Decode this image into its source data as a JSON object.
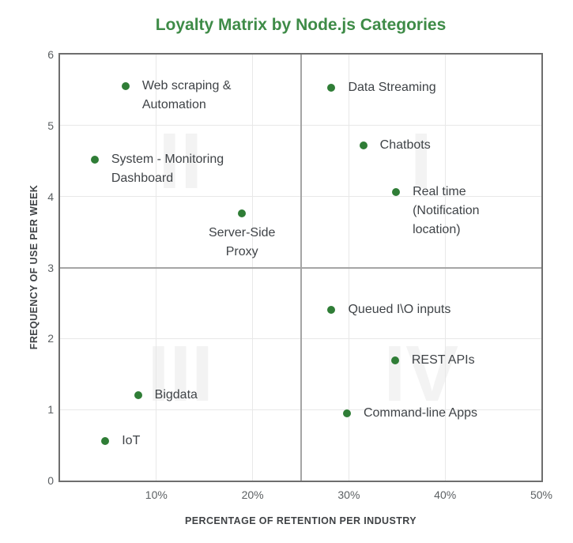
{
  "title": "Loyalty Matrix by Node.js Categories",
  "colors": {
    "background": "#ffffff",
    "title": "#3e8b47",
    "dot": "#2f7d36",
    "label": "#3f4347",
    "tick": "#5c6063",
    "axis_title": "#3f4245",
    "grid": "#e8e8e8",
    "quadrant_line": "#a5a5a5",
    "border": "#6e6e6e",
    "watermark": "#f3f3f3"
  },
  "chart_data": {
    "type": "scatter",
    "title": "Loyalty Matrix by Node.js Categories",
    "xlabel": "PERCENTAGE OF RETENTION PER INDUSTRY",
    "ylabel": "FREQUENCY OF USE PER WEEK",
    "xlim": [
      0,
      50
    ],
    "ylim": [
      0,
      6
    ],
    "x_unit": "%",
    "grid": true,
    "x_ticks": [
      {
        "value": 10,
        "label": "10%"
      },
      {
        "value": 20,
        "label": "20%"
      },
      {
        "value": 30,
        "label": "30%"
      },
      {
        "value": 40,
        "label": "40%"
      },
      {
        "value": 50,
        "label": "50%"
      }
    ],
    "y_ticks": [
      {
        "value": 0,
        "label": "0"
      },
      {
        "value": 1,
        "label": "1"
      },
      {
        "value": 2,
        "label": "2"
      },
      {
        "value": 3,
        "label": "3"
      },
      {
        "value": 4,
        "label": "4"
      },
      {
        "value": 5,
        "label": "5"
      },
      {
        "value": 6,
        "label": "6"
      }
    ],
    "quadrant_divider": {
      "x": 25,
      "y": 3
    },
    "quadrant_labels": [
      {
        "text": "I",
        "x": 37.5,
        "y": 4.5
      },
      {
        "text": "II",
        "x": 12.5,
        "y": 4.5
      },
      {
        "text": "III",
        "x": 12.5,
        "y": 1.5
      },
      {
        "text": "IV",
        "x": 37.5,
        "y": 1.5
      }
    ],
    "points": [
      {
        "label": "Web scraping & Automation",
        "x": 6.8,
        "y": 5.55,
        "label_lines": [
          "Web scraping &",
          "Automation"
        ],
        "placement": "right"
      },
      {
        "label": "Data Streaming",
        "x": 28.2,
        "y": 5.53,
        "label_lines": [
          "Data Streaming"
        ],
        "placement": "right"
      },
      {
        "label": "System - Monitoring Dashboard",
        "x": 3.6,
        "y": 4.52,
        "label_lines": [
          "System - Monitoring",
          "Dashboard"
        ],
        "placement": "right"
      },
      {
        "label": "Chatbots",
        "x": 31.5,
        "y": 4.72,
        "label_lines": [
          "Chatbots"
        ],
        "placement": "right"
      },
      {
        "label": "Real time (Notification location)",
        "x": 34.9,
        "y": 4.06,
        "label_lines": [
          "Real time",
          "(Notification",
          "location)"
        ],
        "placement": "right"
      },
      {
        "label": "Server-Side Proxy",
        "x": 18.9,
        "y": 3.76,
        "label_lines": [
          "Server-Side",
          "Proxy"
        ],
        "placement": "below"
      },
      {
        "label": "Queued I\\O inputs",
        "x": 28.2,
        "y": 2.4,
        "label_lines": [
          "Queued I\\O inputs"
        ],
        "placement": "right"
      },
      {
        "label": "REST APIs",
        "x": 34.8,
        "y": 1.69,
        "label_lines": [
          "REST APIs"
        ],
        "placement": "right"
      },
      {
        "label": "Bigdata",
        "x": 8.1,
        "y": 1.2,
        "label_lines": [
          "Bigdata"
        ],
        "placement": "right"
      },
      {
        "label": "Command-line Apps",
        "x": 29.8,
        "y": 0.95,
        "label_lines": [
          "Command-line Apps"
        ],
        "placement": "right"
      },
      {
        "label": "IoT",
        "x": 4.7,
        "y": 0.56,
        "label_lines": [
          "IoT"
        ],
        "placement": "right"
      }
    ]
  }
}
